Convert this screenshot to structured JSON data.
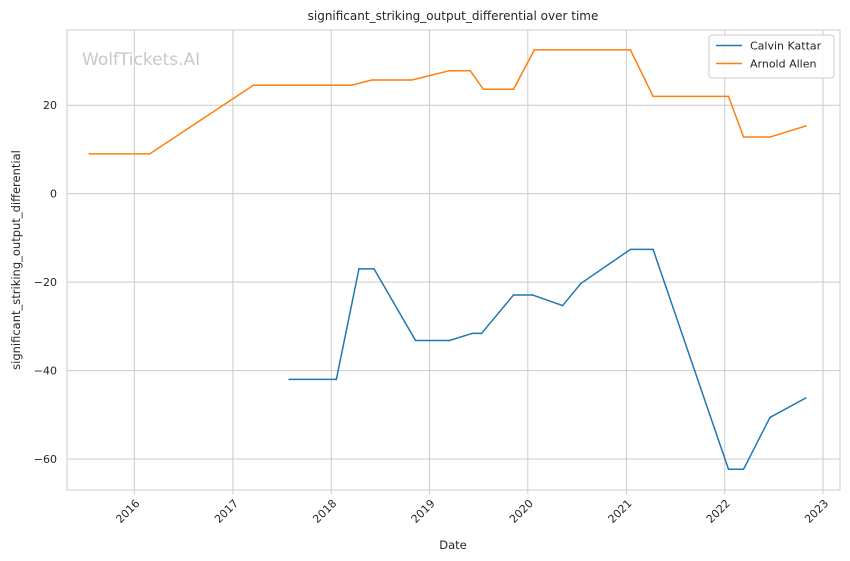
{
  "chart_data": {
    "type": "line",
    "title": "significant_striking_output_differential over time",
    "xlabel": "Date",
    "ylabel": "significant_striking_output_differential",
    "watermark": "WolfTickets.AI",
    "xlim": [
      "2015-04-26",
      "2023-03-05"
    ],
    "ylim": [
      -67,
      37
    ],
    "x_ticks": [
      "2016-01-01",
      "2017-01-01",
      "2018-01-01",
      "2019-01-01",
      "2020-01-01",
      "2021-01-01",
      "2022-01-01",
      "2023-01-01"
    ],
    "x_tick_labels": [
      "2016",
      "2017",
      "2018",
      "2019",
      "2020",
      "2021",
      "2022",
      "2023"
    ],
    "y_ticks": [
      -60,
      -40,
      -20,
      0,
      20
    ],
    "y_tick_labels": [
      "−60",
      "−40",
      "−20",
      "0",
      "20"
    ],
    "grid": true,
    "legend_position": "top-right",
    "series": [
      {
        "name": "Calvin Kattar",
        "color": "#1f77b4",
        "points": [
          [
            "2017-07-29",
            -42.0
          ],
          [
            "2018-01-20",
            -42.0
          ],
          [
            "2018-04-14",
            -17.0
          ],
          [
            "2018-06-09",
            -17.0
          ],
          [
            "2018-11-10",
            -33.2
          ],
          [
            "2019-03-16",
            -33.2
          ],
          [
            "2019-06-08",
            -31.6
          ],
          [
            "2019-07-13",
            -31.6
          ],
          [
            "2019-11-09",
            -22.9
          ],
          [
            "2020-01-18",
            -22.9
          ],
          [
            "2020-05-09",
            -25.3
          ],
          [
            "2020-07-16",
            -20.3
          ],
          [
            "2021-01-16",
            -12.6
          ],
          [
            "2021-04-10",
            -12.6
          ],
          [
            "2022-01-15",
            -62.3
          ],
          [
            "2022-03-12",
            -62.3
          ],
          [
            "2022-06-18",
            -50.6
          ],
          [
            "2022-10-29",
            -46.2
          ]
        ]
      },
      {
        "name": "Arnold Allen",
        "color": "#ff7f0e",
        "points": [
          [
            "2015-07-18",
            9.0
          ],
          [
            "2016-02-27",
            9.0
          ],
          [
            "2017-03-18",
            24.5
          ],
          [
            "2018-03-17",
            24.5
          ],
          [
            "2018-06-01",
            25.7
          ],
          [
            "2018-10-27",
            25.7
          ],
          [
            "2019-03-16",
            27.8
          ],
          [
            "2019-06-01",
            27.8
          ],
          [
            "2019-07-20",
            23.6
          ],
          [
            "2019-11-09",
            23.6
          ],
          [
            "2020-01-25",
            32.5
          ],
          [
            "2021-01-16",
            32.5
          ],
          [
            "2021-04-10",
            22.0
          ],
          [
            "2022-01-15",
            22.0
          ],
          [
            "2022-03-12",
            12.8
          ],
          [
            "2022-06-18",
            12.8
          ],
          [
            "2022-10-29",
            15.3
          ]
        ]
      }
    ]
  }
}
